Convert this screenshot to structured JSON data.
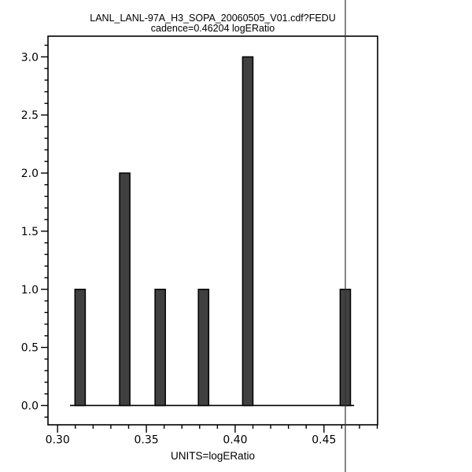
{
  "chart_data": {
    "type": "bar",
    "title": "LANL_LANL-97A_H3_SOPA_20060505_V01.cdf?FEDU",
    "subtitle": "cadence=0.46204 logERatio",
    "xlabel": "UNITS=logERatio",
    "ylabel": "",
    "bars": [
      {
        "x": 0.3127,
        "count": 1
      },
      {
        "x": 0.3378,
        "count": 2
      },
      {
        "x": 0.3578,
        "count": 1
      },
      {
        "x": 0.3822,
        "count": 1
      },
      {
        "x": 0.4071,
        "count": 3
      },
      {
        "x": 0.462,
        "count": 1
      }
    ],
    "bar_width": 0.0058,
    "cadence_value": 0.46204,
    "xlim": [
      0.2946,
      0.4802
    ],
    "ylim": [
      -0.166,
      3.178
    ],
    "x_major_ticks": [
      0.3,
      0.35,
      0.4,
      0.45
    ],
    "x_tick_labels": [
      "0.30",
      "0.35",
      "0.40",
      "0.45"
    ],
    "x_minor_step": 0.01,
    "y_major_ticks": [
      0.0,
      0.5,
      1.0,
      1.5,
      2.0,
      2.5,
      3.0
    ],
    "y_tick_labels": [
      "0.0",
      "0.5",
      "1.0",
      "1.5",
      "2.0",
      "2.5",
      "3.0"
    ],
    "y_minor_step": 0.1,
    "baseline": {
      "y": 0,
      "x_start": 0.307,
      "x_end": 0.467
    },
    "grid": false,
    "legend": null,
    "colors": {
      "background": "#ffffff",
      "text": "#000000",
      "axis": "#000000",
      "bar_fill": "#404040",
      "bar_stroke": "#000000",
      "cadence_line": "#333333"
    }
  }
}
